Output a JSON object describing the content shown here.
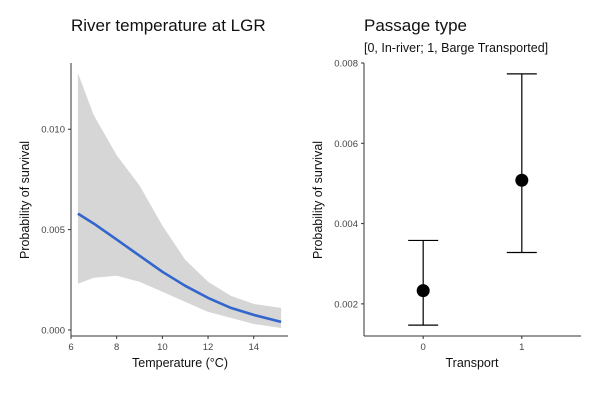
{
  "chart_data": [
    {
      "type": "line",
      "title": "River temperature at LGR",
      "xlabel": "Temperature (°C)",
      "ylabel": "Probability of survival",
      "xlim": [
        6,
        15.5
      ],
      "ylim": [
        -0.0003,
        0.0133
      ],
      "x_ticks": [
        6,
        8,
        10,
        12,
        14
      ],
      "y_ticks": [
        0.0,
        0.005,
        0.01
      ],
      "y_tick_labels": [
        "0.000",
        "0.005",
        "0.010"
      ],
      "grid": false,
      "series": [
        {
          "x": [
            6.3,
            7,
            8,
            9,
            10,
            11,
            12,
            13,
            14,
            15.2
          ],
          "values": [
            0.0058,
            0.0053,
            0.0045,
            0.0037,
            0.0029,
            0.0022,
            0.0016,
            0.0011,
            0.00075,
            0.0004
          ],
          "lower": [
            0.0023,
            0.0026,
            0.0027,
            0.0024,
            0.0019,
            0.0014,
            0.0009,
            0.0006,
            0.0003,
            0.0001
          ],
          "upper": [
            0.0128,
            0.0107,
            0.0087,
            0.0072,
            0.0052,
            0.0035,
            0.0024,
            0.0017,
            0.0013,
            0.0011
          ],
          "color": "#3366cc",
          "band_color": "#d6d6d6"
        }
      ]
    },
    {
      "type": "scatter",
      "title": "Passage type",
      "subtitle": "[0, In-river; 1, Barge Transported]",
      "xlabel": "Transport",
      "ylabel": "Probability of survival",
      "xlim": [
        -0.6,
        1.6
      ],
      "ylim": [
        0.0012,
        0.008
      ],
      "categories": [
        "0",
        "1"
      ],
      "y_ticks": [
        0.002,
        0.004,
        0.006,
        0.008
      ],
      "y_tick_labels": [
        "0.002",
        "0.004",
        "0.006",
        "0.008"
      ],
      "grid": false,
      "series": [
        {
          "values": [
            0.00233,
            0.00508
          ],
          "lower": [
            0.00147,
            0.00328
          ],
          "upper": [
            0.00358,
            0.00773
          ],
          "color": "#000000"
        }
      ]
    }
  ]
}
